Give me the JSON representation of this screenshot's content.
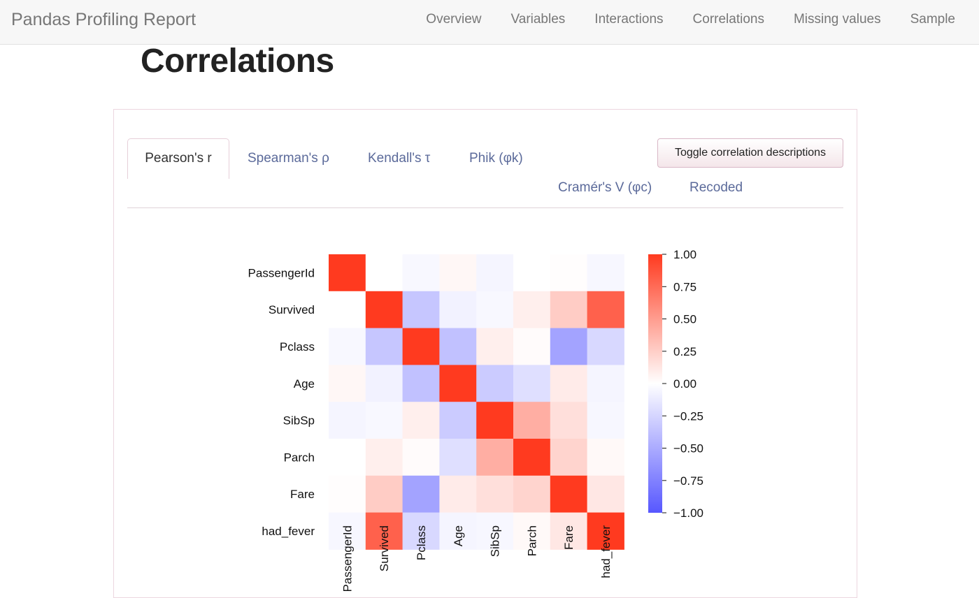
{
  "navbar": {
    "brand": "Pandas Profiling Report",
    "links": [
      "Overview",
      "Variables",
      "Interactions",
      "Correlations",
      "Missing values",
      "Sample"
    ]
  },
  "page_title": "Correlations",
  "tabs": {
    "active": "Pearson's r",
    "items": [
      "Spearman's ρ",
      "Kendall's τ",
      "Phik (φk)",
      "Cramér's V (φc)",
      "Recoded"
    ]
  },
  "toggle_button": "Toggle correlation descriptions",
  "colors": {
    "positive": "#ff3a1f",
    "negative": "#5757ff",
    "zero": "#ffffff"
  },
  "chart_data": {
    "type": "heatmap",
    "variables": [
      "PassengerId",
      "Survived",
      "Pclass",
      "Age",
      "SibSp",
      "Parch",
      "Fare",
      "had_fever"
    ],
    "x_tick_labels": [
      "PassengerId",
      "Survived",
      "Pclass",
      "Age",
      "SibSp",
      "Parch",
      "Fare",
      "had_fever"
    ],
    "values": [
      [
        1.0,
        null,
        -0.04,
        0.04,
        -0.06,
        null,
        0.01,
        -0.05
      ],
      [
        null,
        1.0,
        -0.34,
        -0.08,
        -0.04,
        0.08,
        0.26,
        0.8
      ],
      [
        -0.04,
        -0.34,
        1.0,
        -0.37,
        0.08,
        0.02,
        -0.55,
        -0.23
      ],
      [
        0.04,
        -0.08,
        -0.37,
        1.0,
        -0.31,
        -0.19,
        0.1,
        -0.06
      ],
      [
        -0.06,
        -0.04,
        0.08,
        -0.31,
        1.0,
        0.41,
        0.16,
        -0.05
      ],
      [
        null,
        0.08,
        0.02,
        -0.19,
        0.41,
        1.0,
        0.22,
        0.03
      ],
      [
        0.01,
        0.26,
        -0.55,
        0.1,
        0.16,
        0.22,
        1.0,
        0.12
      ],
      [
        -0.05,
        0.8,
        -0.23,
        -0.06,
        -0.05,
        0.03,
        0.12,
        1.0
      ]
    ],
    "colorbar": {
      "range": [
        -1.0,
        1.0
      ],
      "ticks": [
        "1.00",
        "0.75",
        "0.50",
        "0.25",
        "0.00",
        "−0.25",
        "−0.50",
        "−0.75",
        "−1.00"
      ]
    }
  }
}
